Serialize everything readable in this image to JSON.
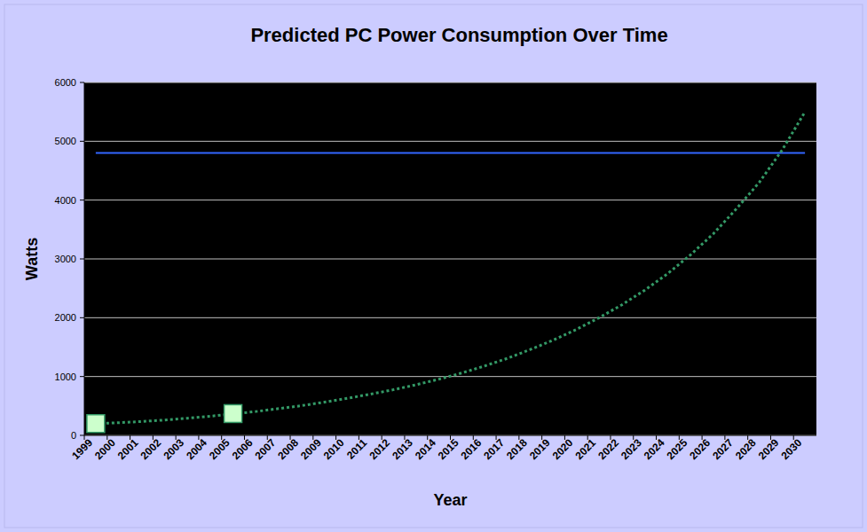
{
  "chart_data": {
    "type": "line",
    "title": "Predicted PC Power Consumption Over Time",
    "x_label": "Year",
    "y_label": "Watts",
    "categories": [
      "1999",
      "2000",
      "2001",
      "2002",
      "2003",
      "2004",
      "2005",
      "2006",
      "2007",
      "2008",
      "2009",
      "2010",
      "2011",
      "2012",
      "2013",
      "2014",
      "2015",
      "2016",
      "2017",
      "2018",
      "2019",
      "2020",
      "2021",
      "2022",
      "2023",
      "2024",
      "2025",
      "2026",
      "2027",
      "2028",
      "2029",
      "2030"
    ],
    "series": [
      {
        "color": "#ccffcc",
        "marker": "square",
        "values": [
          200,
          null,
          null,
          null,
          null,
          null,
          370,
          null,
          null,
          null,
          null,
          null,
          null,
          null,
          null,
          null,
          null,
          null,
          null,
          null,
          null,
          null,
          null,
          null,
          null,
          null,
          null,
          null,
          null,
          null,
          null,
          null
        ]
      },
      {
        "color": "#339966",
        "line_style": "dotted",
        "values": [
          200,
          215,
          235,
          260,
          290,
          325,
          365,
          405,
          455,
          505,
          565,
          630,
          700,
          775,
          860,
          955,
          1060,
          1180,
          1310,
          1460,
          1620,
          1800,
          2000,
          2220,
          2470,
          2750,
          3070,
          3430,
          3850,
          4300,
          4850,
          5500
        ]
      },
      {
        "color": "#3366ff",
        "line_style": "solid",
        "values": [
          4800,
          4800,
          4800,
          4800,
          4800,
          4800,
          4800,
          4800,
          4800,
          4800,
          4800,
          4800,
          4800,
          4800,
          4800,
          4800,
          4800,
          4800,
          4800,
          4800,
          4800,
          4800,
          4800,
          4800,
          4800,
          4800,
          4800,
          4800,
          4800,
          4800,
          4800,
          4800
        ]
      }
    ],
    "ylim": [
      0,
      6000
    ],
    "yticks": [
      0,
      1000,
      2000,
      3000,
      4000,
      5000,
      6000
    ],
    "grid": true
  }
}
